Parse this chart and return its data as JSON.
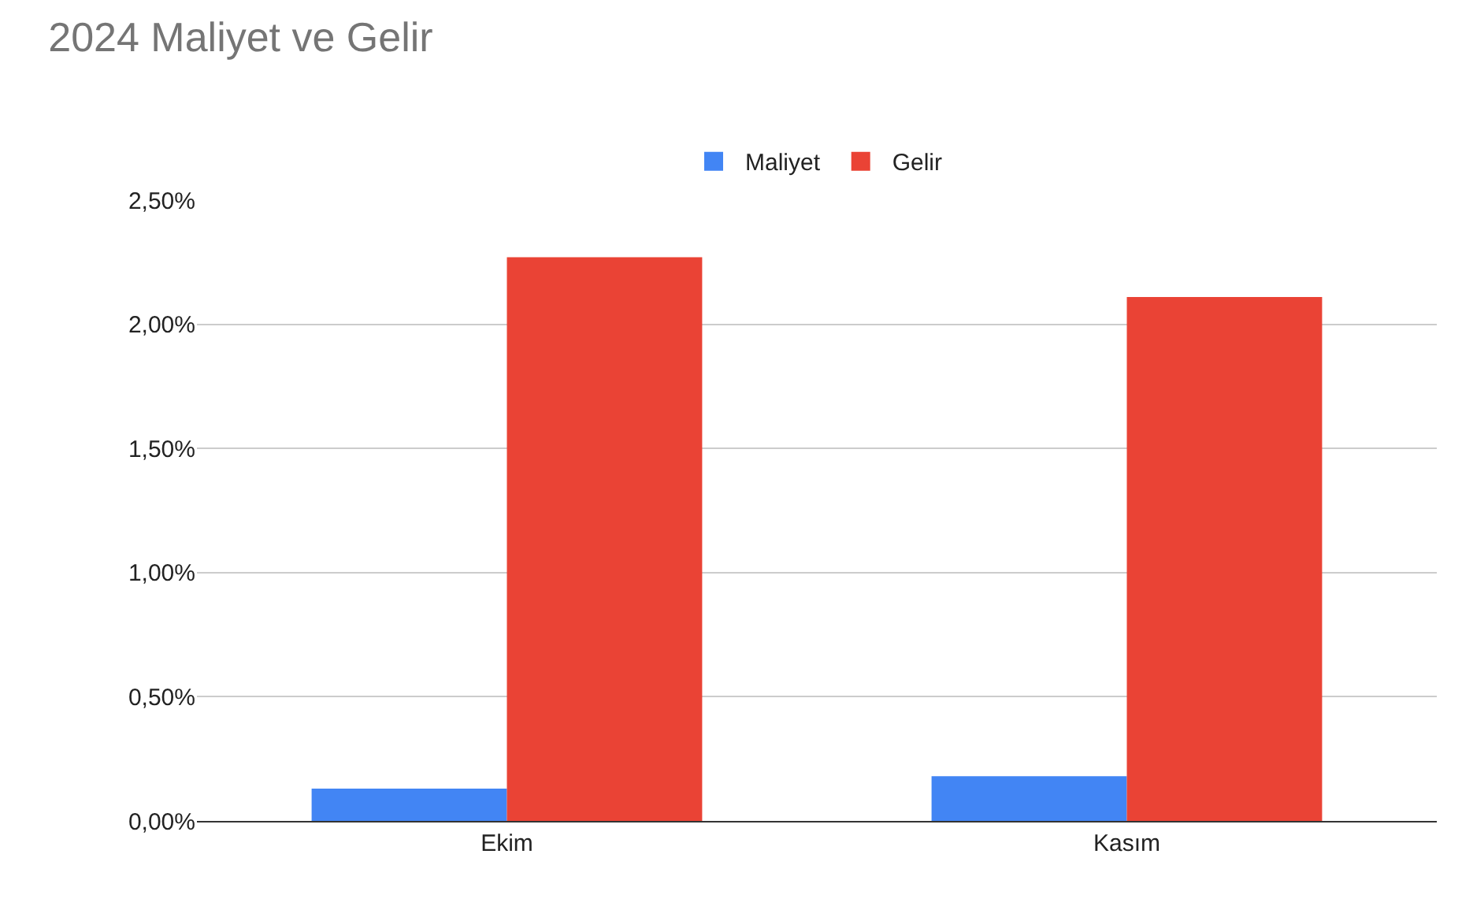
{
  "chart_data": {
    "type": "bar",
    "title": "2024 Maliyet ve Gelir",
    "categories": [
      "Ekim",
      "Kasım"
    ],
    "series": [
      {
        "name": "Maliyet",
        "color": "#4285f4",
        "values": [
          0.13,
          0.18
        ]
      },
      {
        "name": "Gelir",
        "color": "#ea4335",
        "values": [
          2.27,
          2.11
        ]
      }
    ],
    "ylim": [
      0,
      2.5
    ],
    "yticks": [
      {
        "value": 0,
        "label": "0,00%"
      },
      {
        "value": 0.5,
        "label": "0,50%"
      },
      {
        "value": 1,
        "label": "1,00%"
      },
      {
        "value": 1.5,
        "label": "1,50%"
      },
      {
        "value": 2,
        "label": "2,00%"
      },
      {
        "value": 2.5,
        "label": "2,50%"
      }
    ],
    "grid": "y",
    "legend": "top"
  }
}
